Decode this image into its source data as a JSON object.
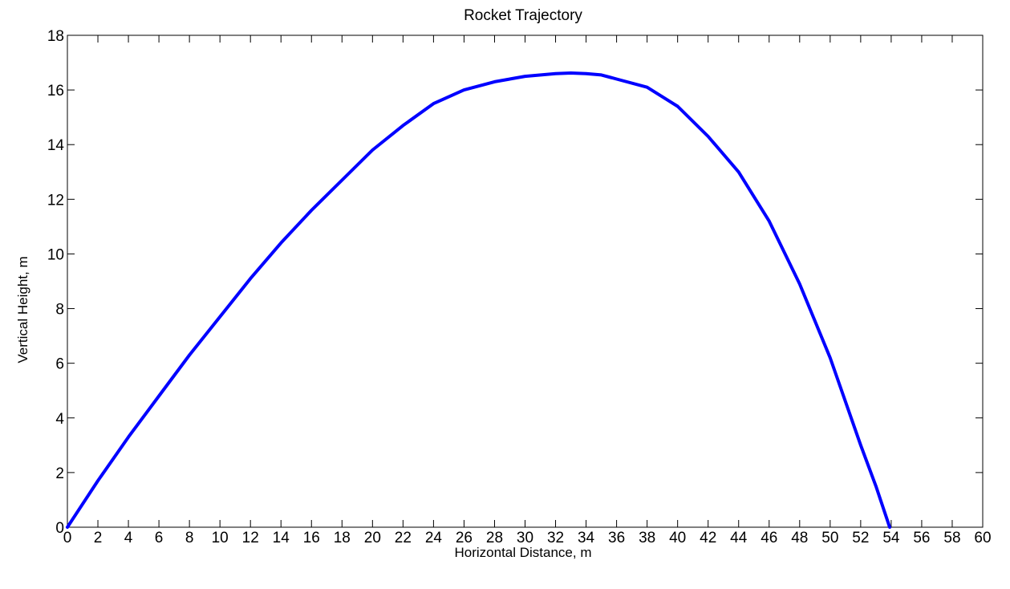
{
  "chart_data": {
    "type": "line",
    "title": "Rocket Trajectory",
    "xlabel": "Horizontal Distance, m",
    "ylabel": "Vertical Height, m",
    "xlim": [
      0,
      60
    ],
    "ylim": [
      0,
      18
    ],
    "xticks": [
      0,
      2,
      4,
      6,
      8,
      10,
      12,
      14,
      16,
      18,
      20,
      22,
      24,
      26,
      28,
      30,
      32,
      34,
      36,
      38,
      40,
      42,
      44,
      46,
      48,
      50,
      52,
      54,
      56,
      58,
      60
    ],
    "yticks": [
      0,
      2,
      4,
      6,
      8,
      10,
      12,
      14,
      16,
      18
    ],
    "grid": false,
    "legend": "none",
    "series": [
      {
        "color": "#0000ff",
        "x": [
          0,
          2,
          4,
          6,
          8,
          10,
          12,
          14,
          16,
          18,
          20,
          22,
          24,
          26,
          28,
          30,
          32,
          33,
          34,
          35,
          36,
          38,
          40,
          42,
          44,
          46,
          48,
          50,
          52,
          53,
          53.9
        ],
        "y": [
          0,
          1.7,
          3.3,
          4.8,
          6.3,
          7.7,
          9.1,
          10.4,
          11.6,
          12.7,
          13.8,
          14.7,
          15.5,
          16.0,
          16.3,
          16.5,
          16.6,
          16.62,
          16.6,
          16.55,
          16.4,
          16.1,
          15.4,
          14.3,
          13.0,
          11.2,
          8.9,
          6.2,
          3.0,
          1.5,
          0
        ]
      }
    ]
  }
}
